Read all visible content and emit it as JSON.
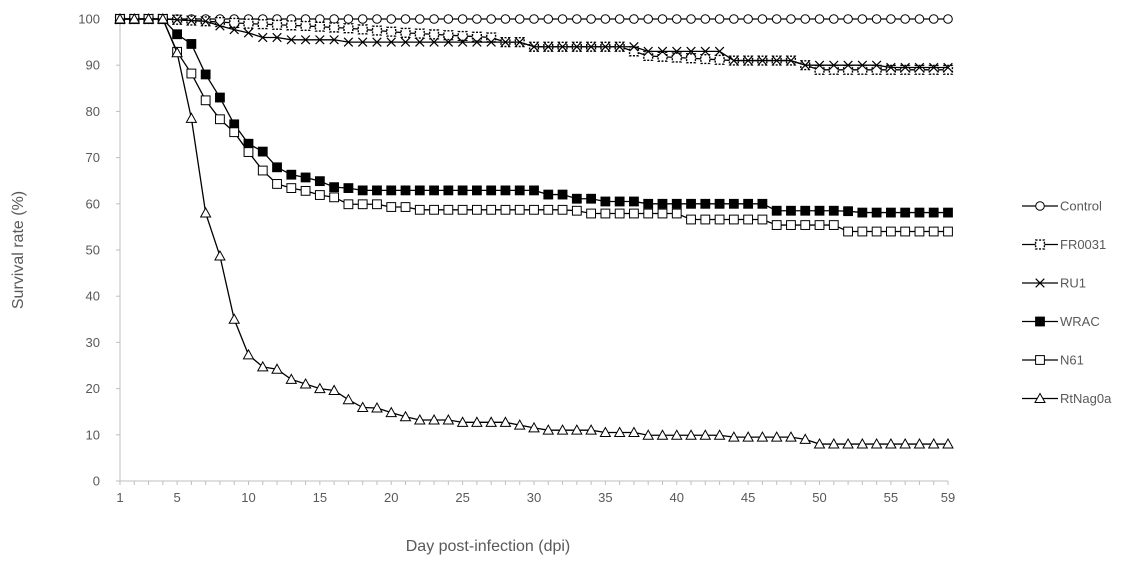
{
  "chart_data": {
    "type": "line",
    "xlabel": "Day post-infection (dpi)",
    "ylabel": "Survival rate (%)",
    "xlim": [
      1,
      59
    ],
    "ylim": [
      0,
      100
    ],
    "x_tick_labels": [
      "1",
      "5",
      "10",
      "15",
      "20",
      "25",
      "30",
      "35",
      "40",
      "45",
      "50",
      "55",
      "59"
    ],
    "y_tick_labels": [
      "0",
      "10",
      "20",
      "30",
      "40",
      "50",
      "60",
      "70",
      "80",
      "90",
      "100"
    ],
    "grid": false,
    "legend_position": "right",
    "series": [
      {
        "name": "Control",
        "marker": "open-circle",
        "breakpoints": [
          [
            1,
            100
          ],
          [
            59,
            100
          ]
        ]
      },
      {
        "name": "FR0031",
        "marker": "dashed-square",
        "breakpoints": [
          [
            1,
            100
          ],
          [
            4,
            100
          ],
          [
            7,
            99.5
          ],
          [
            10,
            99
          ],
          [
            14,
            98.5
          ],
          [
            17,
            98
          ],
          [
            19,
            97.5
          ],
          [
            21,
            97
          ],
          [
            24,
            96.5
          ],
          [
            27,
            96
          ],
          [
            28,
            95
          ],
          [
            29,
            95
          ],
          [
            30,
            94
          ],
          [
            36,
            94
          ],
          [
            38,
            92
          ],
          [
            44,
            91
          ],
          [
            48,
            91
          ],
          [
            50,
            89
          ],
          [
            59,
            89
          ]
        ]
      },
      {
        "name": "RU1",
        "marker": "cross",
        "breakpoints": [
          [
            1,
            100
          ],
          [
            4,
            100
          ],
          [
            7,
            99.5
          ],
          [
            8,
            98.5
          ],
          [
            9,
            97.7
          ],
          [
            10,
            97
          ],
          [
            11,
            96
          ],
          [
            12,
            96
          ],
          [
            13,
            95.5
          ],
          [
            16,
            95.5
          ],
          [
            17,
            95
          ],
          [
            29,
            95
          ],
          [
            30,
            94
          ],
          [
            37,
            94
          ],
          [
            38,
            93
          ],
          [
            43,
            93
          ],
          [
            44,
            91
          ],
          [
            48,
            91
          ],
          [
            49,
            90
          ],
          [
            54,
            90
          ],
          [
            55,
            89.5
          ],
          [
            59,
            89.5
          ]
        ]
      },
      {
        "name": "WRAC",
        "marker": "filled-square",
        "breakpoints": [
          [
            1,
            100
          ],
          [
            4,
            100
          ],
          [
            5,
            96.7
          ],
          [
            6,
            94.6
          ],
          [
            7,
            88
          ],
          [
            8,
            83
          ],
          [
            9,
            77.2
          ],
          [
            10,
            73
          ],
          [
            11,
            71.3
          ],
          [
            12,
            67.9
          ],
          [
            13,
            66.3
          ],
          [
            14,
            65.7
          ],
          [
            15,
            64.9
          ],
          [
            16,
            63.6
          ],
          [
            17,
            63.4
          ],
          [
            18,
            62.9
          ],
          [
            30,
            62.9
          ],
          [
            31,
            62
          ],
          [
            32,
            62
          ],
          [
            33,
            61.1
          ],
          [
            34,
            61.1
          ],
          [
            35,
            60.5
          ],
          [
            37,
            60.5
          ],
          [
            38,
            60
          ],
          [
            46,
            60
          ],
          [
            47,
            58.5
          ],
          [
            51,
            58.5
          ],
          [
            52,
            58.4
          ],
          [
            53,
            58.1
          ],
          [
            59,
            58.1
          ]
        ]
      },
      {
        "name": "N61",
        "marker": "open-square",
        "breakpoints": [
          [
            1,
            100
          ],
          [
            4,
            100
          ],
          [
            5,
            92.9
          ],
          [
            6,
            88.2
          ],
          [
            7,
            82.4
          ],
          [
            8,
            78.3
          ],
          [
            9,
            75.5
          ],
          [
            10,
            71.2
          ],
          [
            11,
            67.2
          ],
          [
            12,
            64.3
          ],
          [
            13,
            63.4
          ],
          [
            14,
            62.8
          ],
          [
            15,
            61.9
          ],
          [
            16,
            61.4
          ],
          [
            17,
            59.9
          ],
          [
            19,
            59.9
          ],
          [
            20,
            59.3
          ],
          [
            21,
            59.3
          ],
          [
            22,
            58.7
          ],
          [
            32,
            58.7
          ],
          [
            33,
            58.5
          ],
          [
            34,
            57.9
          ],
          [
            39,
            57.9
          ],
          [
            40,
            57.9
          ],
          [
            41,
            56.6
          ],
          [
            46,
            56.6
          ],
          [
            47,
            55.4
          ],
          [
            51,
            55.4
          ],
          [
            52,
            54
          ],
          [
            59,
            54
          ]
        ]
      },
      {
        "name": "RtNag0a",
        "marker": "open-triangle",
        "breakpoints": [
          [
            1,
            100
          ],
          [
            4,
            100
          ],
          [
            5,
            92.7
          ],
          [
            6,
            78.5
          ],
          [
            7,
            58
          ],
          [
            8,
            48.7
          ],
          [
            9,
            35
          ],
          [
            10,
            27.3
          ],
          [
            11,
            24.7
          ],
          [
            12,
            24.2
          ],
          [
            13,
            22
          ],
          [
            14,
            21
          ],
          [
            15,
            20
          ],
          [
            16,
            19.6
          ],
          [
            17,
            17.6
          ],
          [
            18,
            15.9
          ],
          [
            19,
            15.8
          ],
          [
            20,
            14.8
          ],
          [
            21,
            13.9
          ],
          [
            22,
            13.2
          ],
          [
            24,
            13.2
          ],
          [
            25,
            12.7
          ],
          [
            28,
            12.7
          ],
          [
            29,
            12.1
          ],
          [
            30,
            11.5
          ],
          [
            31,
            11
          ],
          [
            34,
            11
          ],
          [
            35,
            10.5
          ],
          [
            37,
            10.5
          ],
          [
            38,
            9.9
          ],
          [
            43,
            9.9
          ],
          [
            44,
            9.5
          ],
          [
            48,
            9.5
          ],
          [
            49,
            9
          ],
          [
            50,
            8
          ],
          [
            59,
            8
          ]
        ]
      }
    ]
  }
}
